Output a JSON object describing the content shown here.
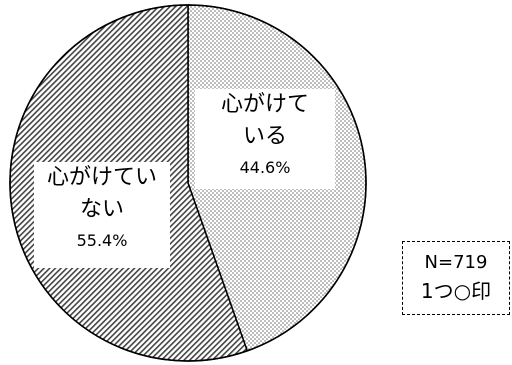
{
  "chart_data": {
    "type": "pie",
    "start_angle_deg": 0,
    "direction": "clockwise",
    "slices": [
      {
        "label": "心がけている",
        "label_lines": [
          "心がけて",
          "いる"
        ],
        "value": 44.6,
        "value_label": "44.6%",
        "pattern": "dots"
      },
      {
        "label": "心がけていない",
        "label_lines": [
          "心がけてい",
          "ない"
        ],
        "value": 55.4,
        "value_label": "55.4%",
        "pattern": "hatch"
      }
    ]
  },
  "note": {
    "n": "N=719",
    "method": "1つ○印"
  },
  "colors": {
    "stroke": "#000000",
    "background": "#ffffff",
    "pattern_ink": "#555555"
  }
}
